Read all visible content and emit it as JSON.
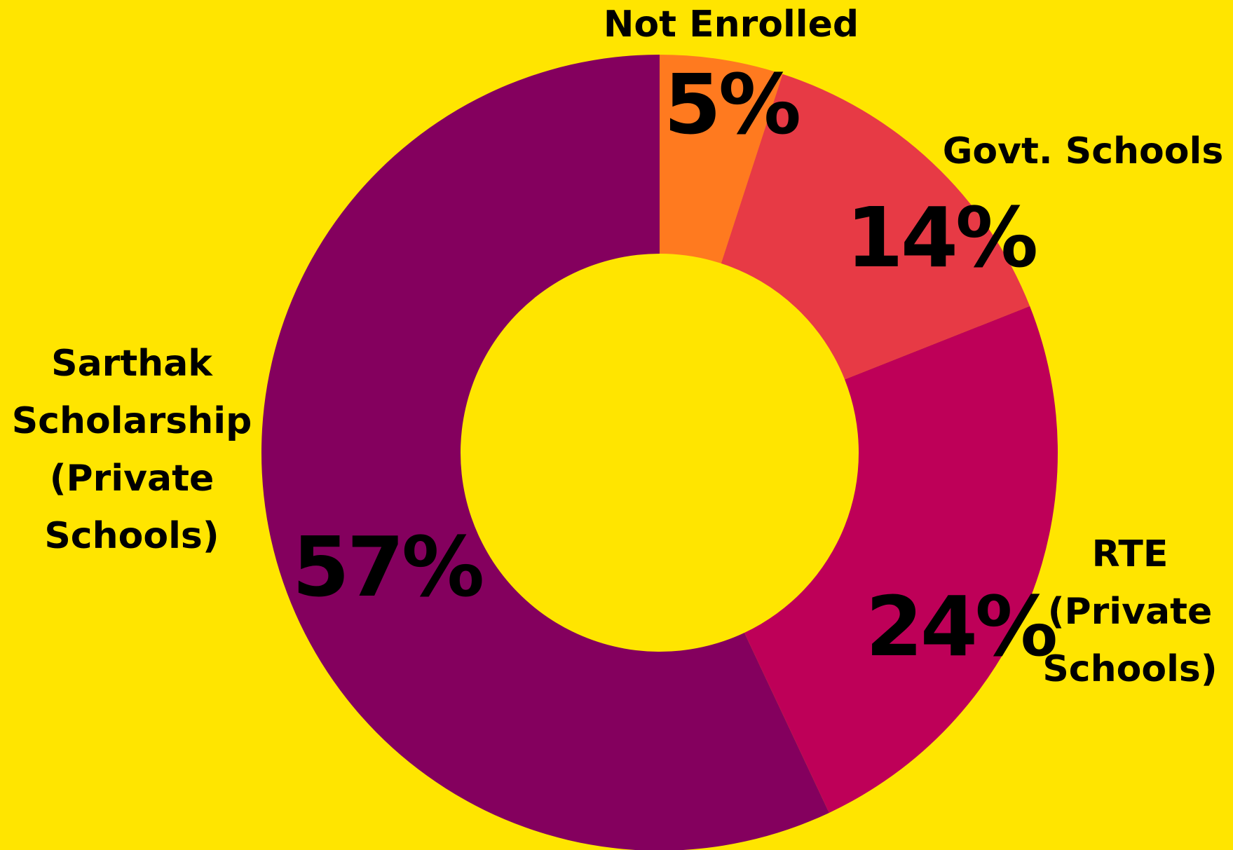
{
  "chart_data": {
    "type": "pie",
    "donut": true,
    "categories": [
      "Not Enrolled",
      "Govt. Schools",
      "RTE (Private Schools)",
      "Sarthak Scholarship (Private Schools)"
    ],
    "values": [
      5,
      14,
      24,
      57
    ],
    "value_labels": [
      "5%",
      "14%",
      "24%",
      "57%"
    ],
    "colors": [
      "#FF7A1F",
      "#E73A45",
      "#BE0058",
      "#84005E"
    ],
    "label_lines": [
      [
        "Not Enrolled"
      ],
      [
        "Govt. Schools"
      ],
      [
        "RTE",
        "(Private",
        "Schools)"
      ],
      [
        "Sarthak",
        "Scholarship",
        "(Private",
        "Schools)"
      ]
    ],
    "background": "#FFE500",
    "legend": "none",
    "grid": false
  }
}
